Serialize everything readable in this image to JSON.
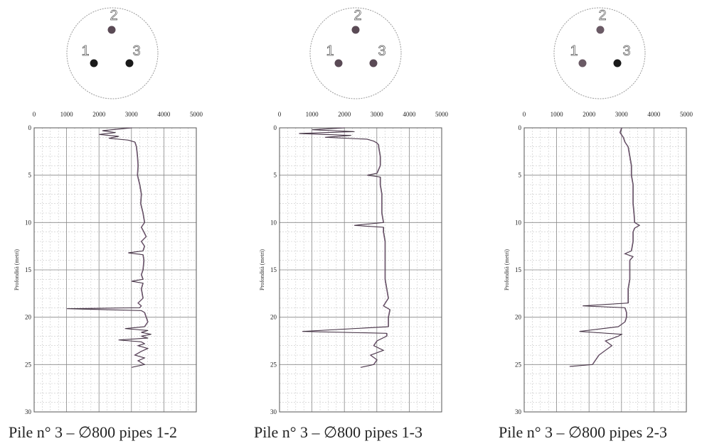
{
  "chart_data": [
    {
      "type": "line",
      "title": "Pile n° 3 – ∅800 pipes 1-2",
      "xlabel": "",
      "ylabel": "Profondità (metri)",
      "xlim": [
        0,
        5000
      ],
      "ylim": [
        0,
        30
      ],
      "x_ticks": [
        0,
        1000,
        2000,
        3000,
        4000,
        5000
      ],
      "y_ticks": [
        0,
        5,
        10,
        15,
        20,
        25,
        30
      ],
      "grid": true,
      "pipe_labels": [
        "1",
        "2",
        "3"
      ],
      "pipe_dot_colors": {
        "1": "#1a1a1a",
        "2": "#5a4a55",
        "3": "#1a1a1a"
      },
      "series": [
        {
          "depth": [
            0,
            0.3,
            0.5,
            0.7,
            0.9,
            1.1,
            1.3,
            1.5,
            2,
            3,
            4,
            5,
            6,
            7,
            8,
            9,
            10,
            10.5,
            11,
            11.5,
            12,
            12.5,
            13,
            13.2,
            13.4,
            14,
            15,
            15.5,
            16,
            16.2,
            16.4,
            17,
            18,
            18.5,
            18.8,
            19,
            19.1,
            19.3,
            19.5,
            20,
            20.5,
            21,
            21.2,
            21.4,
            21.6,
            21.8,
            22,
            22.2,
            22.4,
            22.6,
            22.8,
            23,
            23.3,
            23.6,
            24,
            24.3,
            24.6,
            25,
            25.3
          ],
          "velocity": [
            3000,
            2100,
            2500,
            2000,
            2600,
            2300,
            2900,
            3100,
            3150,
            3180,
            3200,
            3180,
            3250,
            3300,
            3280,
            3350,
            3400,
            3300,
            3380,
            3450,
            3300,
            3400,
            3350,
            2900,
            3350,
            3380,
            3350,
            3300,
            3350,
            3000,
            3350,
            3300,
            3350,
            3200,
            3300,
            3250,
            1000,
            3300,
            3400,
            3450,
            3500,
            3400,
            2800,
            3500,
            3300,
            3600,
            3300,
            3500,
            2600,
            3300,
            3400,
            3200,
            3500,
            3300,
            3100,
            3400,
            3200,
            3400,
            3000
          ]
        }
      ]
    },
    {
      "type": "line",
      "title": "Pile n° 3 – ∅800 pipes 1-3",
      "xlabel": "",
      "ylabel": "Profondità (metri)",
      "xlim": [
        0,
        5000
      ],
      "ylim": [
        0,
        30
      ],
      "x_ticks": [
        0,
        1000,
        2000,
        3000,
        4000,
        5000
      ],
      "y_ticks": [
        0,
        5,
        10,
        15,
        20,
        25,
        30
      ],
      "grid": true,
      "pipe_labels": [
        "1",
        "2",
        "3"
      ],
      "pipe_dot_colors": {
        "1": "#5a4a55",
        "2": "#5a4a55",
        "3": "#5a4a55"
      },
      "series": [
        {
          "depth": [
            0,
            0.2,
            0.4,
            0.6,
            0.8,
            1.0,
            1.2,
            1.4,
            1.6,
            1.8,
            2,
            3,
            4,
            4.8,
            5,
            5.2,
            6,
            7,
            8,
            9,
            10,
            10.3,
            10.5,
            11,
            12,
            13,
            14,
            15,
            16,
            17,
            18,
            18.8,
            19,
            19.2,
            20,
            21,
            21.5,
            21.7,
            22,
            22.5,
            23,
            23.5,
            24,
            24.5,
            25,
            25.3
          ],
          "velocity": [
            2000,
            1000,
            2300,
            600,
            2200,
            1400,
            2700,
            2900,
            3000,
            3050,
            3050,
            3100,
            3100,
            3000,
            2700,
            3100,
            3100,
            3150,
            3150,
            3150,
            3200,
            2300,
            3200,
            3200,
            3250,
            3250,
            3250,
            3250,
            3250,
            3300,
            3350,
            3200,
            3300,
            3400,
            3350,
            3350,
            700,
            3300,
            3300,
            3000,
            2900,
            3200,
            2800,
            3000,
            2900,
            2500
          ]
        }
      ]
    },
    {
      "type": "line",
      "title": "Pile n° 3 – ∅800 pipes 2-3",
      "xlabel": "",
      "ylabel": "Profondità (metri)",
      "xlim": [
        0,
        5000
      ],
      "ylim": [
        0,
        30
      ],
      "x_ticks": [
        0,
        1000,
        2000,
        3000,
        4000,
        5000
      ],
      "y_ticks": [
        0,
        5,
        10,
        15,
        20,
        25,
        30
      ],
      "grid": true,
      "pipe_labels": [
        "1",
        "2",
        "3"
      ],
      "pipe_dot_colors": {
        "1": "#6a5a65",
        "2": "#6a5a65",
        "3": "#1a1a1a"
      },
      "series": [
        {
          "depth": [
            0,
            0.5,
            1,
            1.5,
            2,
            3,
            4,
            5,
            6,
            7,
            8,
            9,
            10,
            10.3,
            10.6,
            11,
            12,
            13,
            13.3,
            13.6,
            14,
            15,
            16,
            17,
            18,
            18.5,
            18.8,
            19,
            19.5,
            20,
            20.5,
            21,
            21.5,
            21.8,
            22,
            22.5,
            23,
            23.5,
            24,
            24.5,
            25,
            25.2
          ],
          "velocity": [
            3000,
            2950,
            3050,
            3100,
            3200,
            3250,
            3300,
            3300,
            3350,
            3350,
            3350,
            3380,
            3400,
            3550,
            3400,
            3350,
            3350,
            3300,
            3100,
            3350,
            3250,
            3250,
            3250,
            3200,
            3200,
            3200,
            1800,
            3100,
            3150,
            3150,
            3100,
            2900,
            1700,
            3000,
            2900,
            2500,
            2700,
            2500,
            2300,
            2200,
            2100,
            1400
          ]
        }
      ]
    }
  ]
}
